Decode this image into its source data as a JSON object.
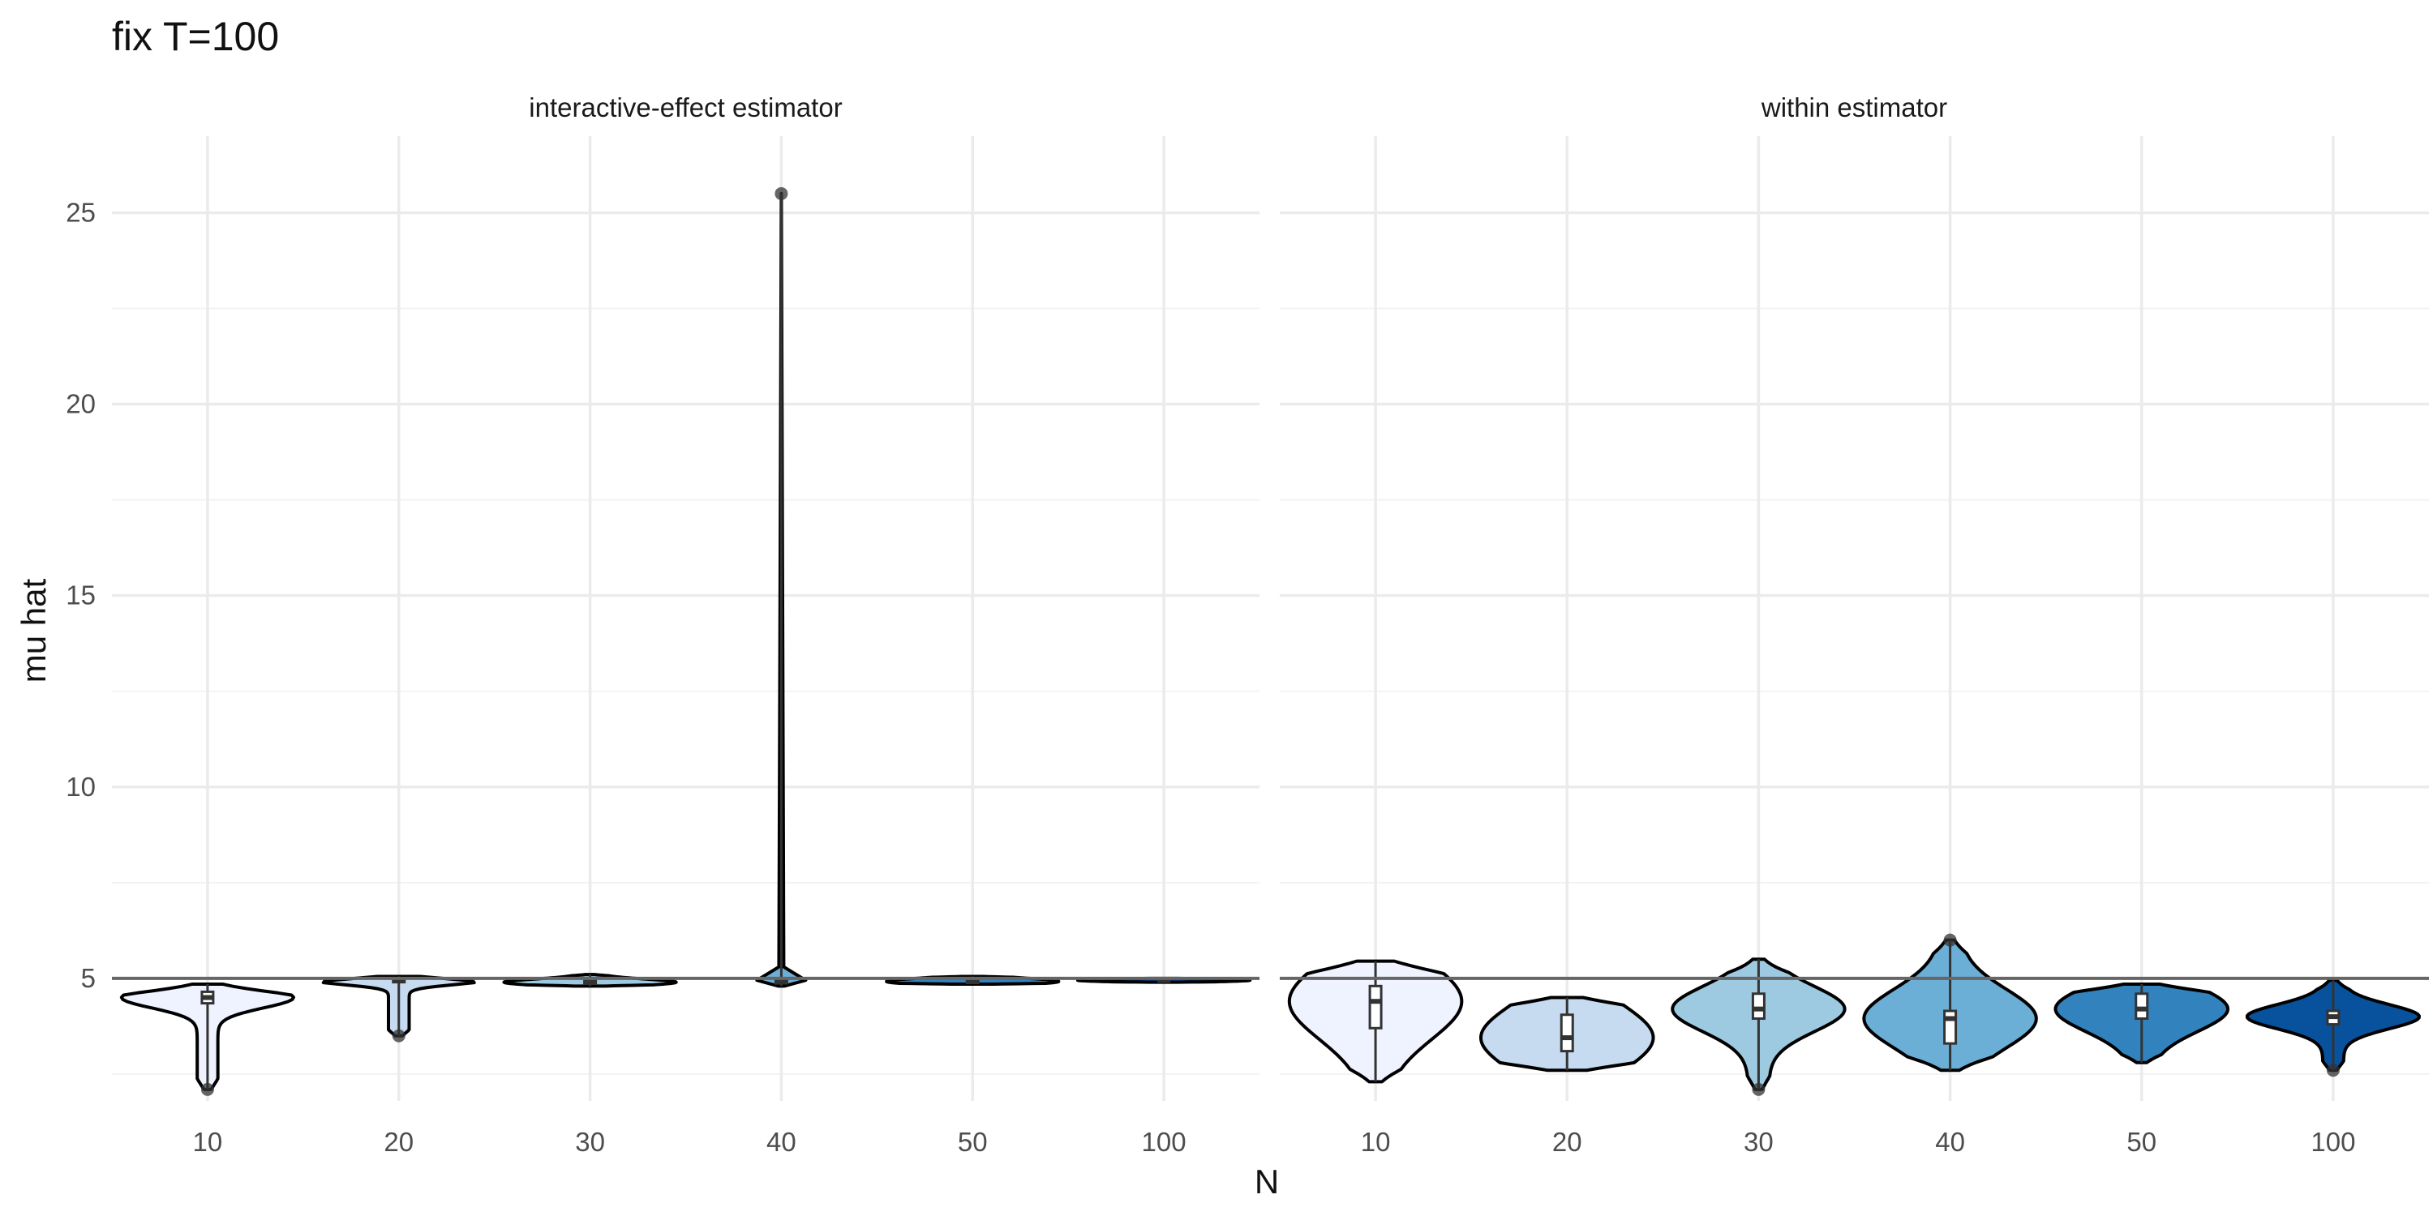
{
  "chart_data": {
    "type": "violin",
    "title": "fix T=100",
    "xlabel": "N",
    "ylabel": "mu hat",
    "ylim": [
      1.8,
      27.0
    ],
    "yticks": [
      "5",
      "10",
      "15",
      "20",
      "25"
    ],
    "reference_line": 5,
    "grid": true,
    "legend": "none",
    "categories": [
      "10",
      "20",
      "30",
      "40",
      "50",
      "100"
    ],
    "fill_colors": [
      "#eff3ff",
      "#c6dbef",
      "#9ecae1",
      "#6baed6",
      "#3182bd",
      "#08519c"
    ],
    "panels": [
      {
        "name": "interactive-effect estimator",
        "groups": [
          {
            "N": "10",
            "min": 2.1,
            "q1": 4.35,
            "median": 4.5,
            "q3": 4.65,
            "max": 4.85,
            "outliers": [
              2.1
            ]
          },
          {
            "N": "20",
            "min": 3.5,
            "q1": 4.9,
            "median": 4.95,
            "q3": 4.98,
            "max": 5.05,
            "outliers": [
              3.5
            ]
          },
          {
            "N": "30",
            "min": 4.8,
            "q1": 4.86,
            "median": 4.9,
            "q3": 4.95,
            "max": 5.1,
            "outliers": []
          },
          {
            "N": "40",
            "min": 4.8,
            "q1": 4.87,
            "median": 4.92,
            "q3": 4.98,
            "max": 25.5,
            "outliers": [
              25.5
            ]
          },
          {
            "N": "50",
            "min": 4.85,
            "q1": 4.88,
            "median": 4.92,
            "q3": 4.97,
            "max": 5.05,
            "outliers": []
          },
          {
            "N": "100",
            "min": 4.9,
            "q1": 4.93,
            "median": 4.95,
            "q3": 4.97,
            "max": 5.0,
            "outliers": []
          }
        ]
      },
      {
        "name": "within estimator",
        "groups": [
          {
            "N": "10",
            "min": 2.3,
            "q1": 3.7,
            "median": 4.4,
            "q3": 4.8,
            "max": 5.45,
            "outliers": []
          },
          {
            "N": "20",
            "min": 2.6,
            "q1": 3.1,
            "median": 3.45,
            "q3": 4.05,
            "max": 4.5,
            "outliers": []
          },
          {
            "N": "30",
            "min": 2.1,
            "q1": 3.95,
            "median": 4.2,
            "q3": 4.6,
            "max": 5.5,
            "outliers": [
              2.1
            ]
          },
          {
            "N": "40",
            "min": 2.6,
            "q1": 3.3,
            "median": 3.95,
            "q3": 4.15,
            "max": 6.0,
            "outliers": [
              6.0
            ]
          },
          {
            "N": "50",
            "min": 2.8,
            "q1": 3.95,
            "median": 4.2,
            "q3": 4.6,
            "max": 4.85,
            "outliers": []
          },
          {
            "N": "100",
            "min": 2.6,
            "q1": 3.8,
            "median": 4.0,
            "q3": 4.15,
            "max": 4.95,
            "outliers": [
              2.6
            ]
          }
        ]
      }
    ]
  }
}
